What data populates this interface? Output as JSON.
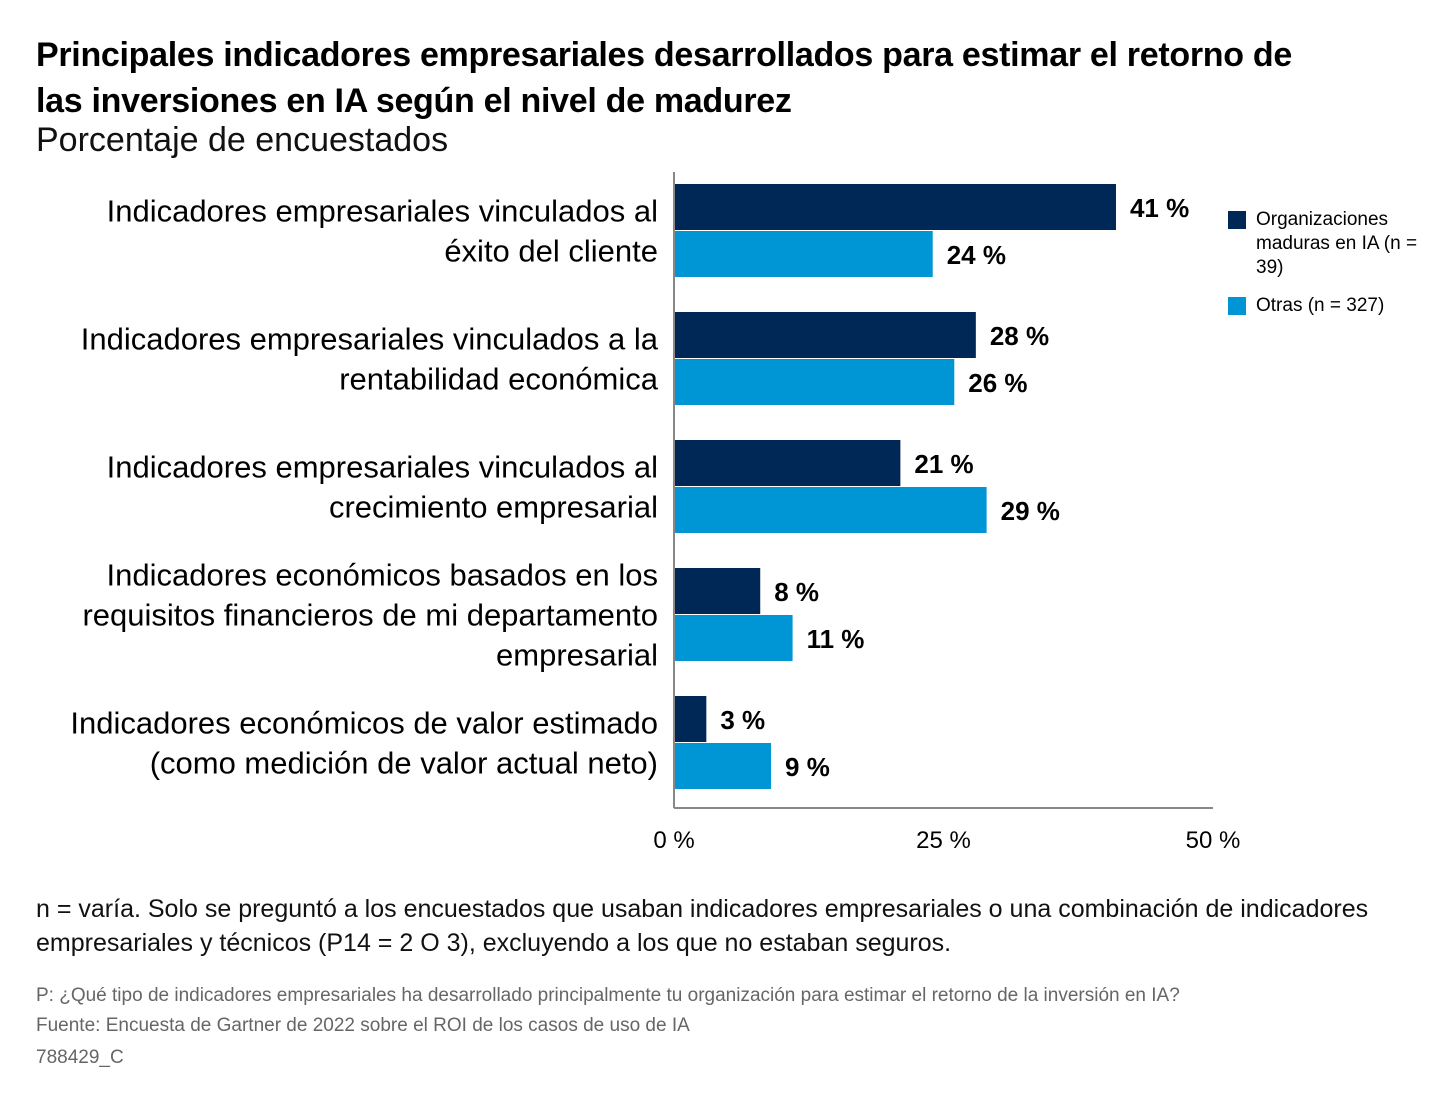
{
  "title": "Principales indicadores empresariales desarrollados para estimar el retorno de las inversiones en IA según el nivel de madurez",
  "subtitle": "Porcentaje de encuestados",
  "legend": {
    "mature": "Organizaciones maduras en IA (n = 39)",
    "others": "Otras (n = 327)"
  },
  "colors": {
    "mature": "#002856",
    "others": "#0096d6",
    "axis": "#888888"
  },
  "chart_data": {
    "type": "bar",
    "orientation": "horizontal",
    "categories": [
      [
        "Indicadores empresariales vinculados al",
        "éxito del cliente"
      ],
      [
        "Indicadores empresariales vinculados a la",
        "rentabilidad económica"
      ],
      [
        "Indicadores empresariales vinculados al",
        "crecimiento empresarial"
      ],
      [
        "Indicadores económicos basados en los",
        "requisitos financieros de mi departamento",
        "empresarial"
      ],
      [
        "Indicadores económicos de valor estimado",
        "(como medición de valor actual neto)"
      ]
    ],
    "series": [
      {
        "name": "Organizaciones maduras en IA (n = 39)",
        "values": [
          41,
          28,
          21,
          8,
          3
        ],
        "labels": [
          "41 %",
          "28 %",
          "21 %",
          "8 %",
          "3 %"
        ]
      },
      {
        "name": "Otras (n = 327)",
        "values": [
          24,
          26,
          29,
          11,
          9
        ],
        "labels": [
          "24 %",
          "26 %",
          "29 %",
          "11 %",
          "9 %"
        ]
      }
    ],
    "xlim": [
      0,
      50
    ],
    "ticks": [
      0,
      25,
      50
    ],
    "tick_labels": [
      "0 %",
      "25 %",
      "50 %"
    ],
    "legend_position": "right"
  },
  "footer": {
    "note": "n = varía. Solo se preguntó a los encuestados que usaban indicadores empresariales o una combinación de indicadores empresariales y técnicos (P14 = 2 O 3), excluyendo a los que no estaban seguros.",
    "question": "P: ¿Qué tipo de indicadores empresariales ha desarrollado principalmente tu organización para estimar el retorno de la inversión en IA?",
    "source": "Fuente: Encuesta de Gartner de 2022 sobre el ROI de los casos de uso de IA",
    "id": "788429_C"
  }
}
